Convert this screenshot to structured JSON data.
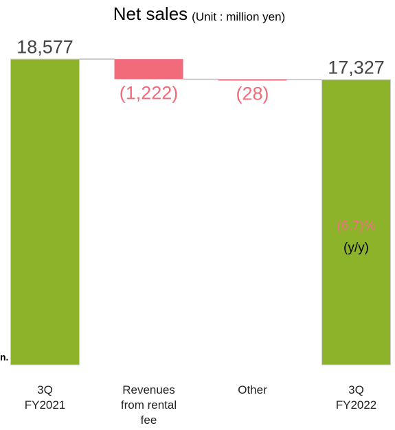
{
  "chart_data": {
    "type": "waterfall",
    "title": "Net sales",
    "subtitle": "(Unit : million yen)",
    "categories": [
      "3Q FY2021",
      "Revenues from rental fee",
      "Other",
      "3Q FY2022"
    ],
    "values": [
      18577,
      -1222,
      -28,
      17327
    ],
    "value_labels": [
      "18,577",
      "(1,222)",
      "(28)",
      "17,327"
    ],
    "totals": [
      true,
      false,
      false,
      true
    ],
    "colors": {
      "total": "#8db32a",
      "decrease": "#f26b7b"
    },
    "ylim": [
      0,
      20000
    ],
    "annotations": [
      {
        "text": "(6.7)%",
        "color": "#f07080"
      },
      {
        "text": "(y/y)",
        "color": "#000000"
      }
    ],
    "edge_text": "n."
  }
}
